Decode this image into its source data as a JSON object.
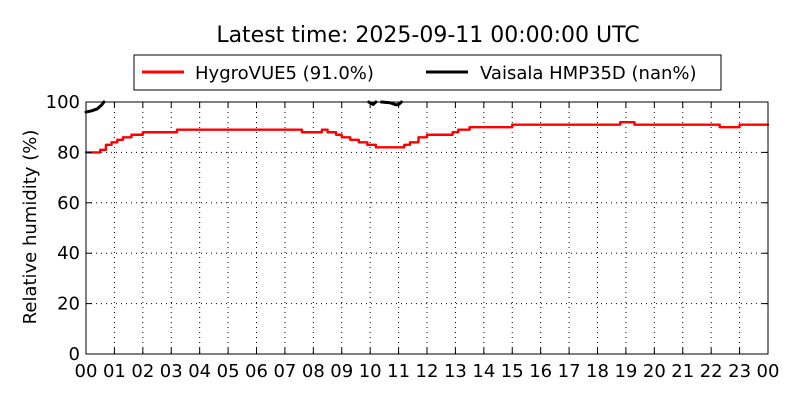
{
  "chart_data": {
    "type": "line",
    "title": "Latest time: 2025-09-11 00:00:00 UTC",
    "xlabel": "",
    "ylabel": "Relative humidity (%)",
    "xlim": [
      0,
      24
    ],
    "ylim": [
      0,
      100
    ],
    "x_ticks": [
      {
        "value": 0,
        "label": "00"
      },
      {
        "value": 1,
        "label": "01"
      },
      {
        "value": 2,
        "label": "02"
      },
      {
        "value": 3,
        "label": "03"
      },
      {
        "value": 4,
        "label": "04"
      },
      {
        "value": 5,
        "label": "05"
      },
      {
        "value": 6,
        "label": "06"
      },
      {
        "value": 7,
        "label": "07"
      },
      {
        "value": 8,
        "label": "08"
      },
      {
        "value": 9,
        "label": "09"
      },
      {
        "value": 10,
        "label": "10"
      },
      {
        "value": 11,
        "label": "11"
      },
      {
        "value": 12,
        "label": "12"
      },
      {
        "value": 13,
        "label": "13"
      },
      {
        "value": 14,
        "label": "14"
      },
      {
        "value": 15,
        "label": "15"
      },
      {
        "value": 16,
        "label": "16"
      },
      {
        "value": 17,
        "label": "17"
      },
      {
        "value": 18,
        "label": "18"
      },
      {
        "value": 19,
        "label": "19"
      },
      {
        "value": 20,
        "label": "20"
      },
      {
        "value": 21,
        "label": "21"
      },
      {
        "value": 22,
        "label": "22"
      },
      {
        "value": 23,
        "label": "23"
      },
      {
        "value": 24,
        "label": "00"
      }
    ],
    "y_ticks": [
      {
        "value": 0,
        "label": "0"
      },
      {
        "value": 20,
        "label": "20"
      },
      {
        "value": 40,
        "label": "40"
      },
      {
        "value": 60,
        "label": "60"
      },
      {
        "value": 80,
        "label": "80"
      },
      {
        "value": 100,
        "label": "100"
      }
    ],
    "grid": true,
    "legend_position": "top",
    "series": [
      {
        "name": "HygroVUE5 (91.0%)",
        "color": "#ff0000",
        "x": [
          0,
          0.3,
          0.5,
          0.7,
          0.9,
          1.1,
          1.3,
          1.6,
          2.0,
          3.0,
          3.2,
          4.0,
          5.0,
          6.0,
          6.6,
          7.0,
          7.6,
          8.0,
          8.3,
          8.5,
          8.8,
          9.0,
          9.3,
          9.6,
          9.9,
          10.2,
          10.5,
          10.8,
          11.0,
          11.2,
          11.4,
          11.7,
          12.0,
          12.5,
          12.9,
          13.1,
          13.5,
          14.0,
          14.9,
          15.0,
          16.0,
          17.0,
          18.0,
          18.8,
          19.3,
          20.0,
          21.0,
          22.0,
          22.3,
          23.0,
          24.0
        ],
        "y": [
          80,
          80,
          81,
          83,
          84,
          85,
          86,
          87,
          88,
          88,
          89,
          89,
          89,
          89,
          89,
          89,
          88,
          88,
          89,
          88,
          87,
          86,
          85,
          84,
          83,
          82,
          82,
          82,
          82,
          83,
          84,
          86,
          87,
          87,
          88,
          89,
          90,
          90,
          90,
          91,
          91,
          91,
          91,
          92,
          91,
          91,
          91,
          91,
          90,
          91,
          91
        ]
      },
      {
        "name": "Vaisala HMP35D (nan%)",
        "color": "#000000",
        "segments": [
          {
            "x": [
              0,
              0.2,
              0.4,
              0.55,
              0.63
            ],
            "y": [
              96,
              96.5,
              97.3,
              98.8,
              100
            ]
          },
          {
            "x": [
              9.95,
              10.1,
              10.2
            ],
            "y": [
              100,
              99,
              100
            ]
          },
          {
            "x": [
              10.4,
              10.7,
              10.9,
              11.0,
              11.1
            ],
            "y": [
              100,
              99.7,
              98.9,
              99,
              100
            ]
          }
        ]
      }
    ]
  }
}
